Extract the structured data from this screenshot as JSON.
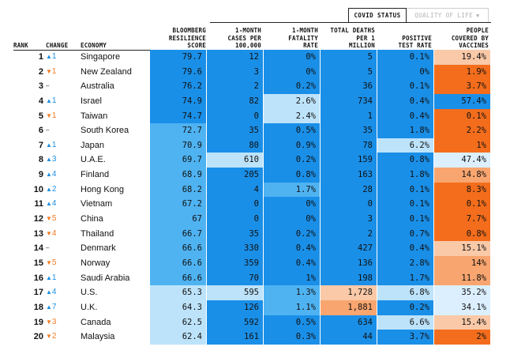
{
  "toggle": {
    "active_label": "COVID STATUS",
    "inactive_label": "QUALITY OF LIFE",
    "caret": "▼"
  },
  "colors": {
    "deep_blue": "#1a8fe8",
    "mid_blue": "#4fb3f2",
    "light_blue": "#bde3fb",
    "pale_blue": "#dcefff",
    "peach": "#f9c9a8",
    "light_orange": "#f8a56f",
    "deep_orange": "#f36d1c",
    "up_arrow": "#1a8fe3",
    "down_arrow": "#f47b20"
  },
  "chart_data": {
    "type": "table",
    "columns": [
      "RANK",
      "CHANGE",
      "ECONOMY",
      "BLOOMBERG RESILIENCE SCORE",
      "1-MONTH CASES PER 100,000",
      "1-MONTH FATALITY RATE",
      "TOTAL DEATHS PER 1 MILLION",
      "POSITIVE TEST RATE",
      "PEOPLE COVERED BY VACCINES"
    ],
    "header_lines": {
      "rank": [
        "RANK"
      ],
      "change": [
        "CHANGE"
      ],
      "economy": [
        "ECONOMY"
      ],
      "score": [
        "BLOOMBERG",
        "RESILIENCE",
        "SCORE"
      ],
      "cases": [
        "1-MONTH",
        "CASES PER",
        "100,000"
      ],
      "fatality": [
        "1-MONTH",
        "FATALITY",
        "RATE"
      ],
      "deaths": [
        "TOTAL DEATHS",
        "PER 1",
        "MILLION"
      ],
      "positive": [
        "POSITIVE",
        "TEST RATE"
      ],
      "vaccines": [
        "PEOPLE",
        "COVERED BY",
        "VACCINES"
      ]
    },
    "rows": [
      {
        "rank": "1",
        "dir": "up",
        "change": "1",
        "economy": "Singapore",
        "score": "79.7",
        "cases": "12",
        "fatality": "0%",
        "deaths": "5",
        "positive": "0.1%",
        "vaccines": "19.4%"
      },
      {
        "rank": "2",
        "dir": "down",
        "change": "1",
        "economy": "New Zealand",
        "score": "79.6",
        "cases": "3",
        "fatality": "0%",
        "deaths": "5",
        "positive": "0%",
        "vaccines": "1.9%"
      },
      {
        "rank": "3",
        "dir": "same",
        "change": "",
        "economy": "Australia",
        "score": "76.2",
        "cases": "2",
        "fatality": "0.2%",
        "deaths": "36",
        "positive": "0.1%",
        "vaccines": "3.7%"
      },
      {
        "rank": "4",
        "dir": "up",
        "change": "1",
        "economy": "Israel",
        "score": "74.9",
        "cases": "82",
        "fatality": "2.6%",
        "deaths": "734",
        "positive": "0.4%",
        "vaccines": "57.4%"
      },
      {
        "rank": "5",
        "dir": "down",
        "change": "1",
        "economy": "Taiwan",
        "score": "74.7",
        "cases": "0",
        "fatality": "2.4%",
        "deaths": "1",
        "positive": "0.4%",
        "vaccines": "0.1%"
      },
      {
        "rank": "6",
        "dir": "same",
        "change": "",
        "economy": "South Korea",
        "score": "72.7",
        "cases": "35",
        "fatality": "0.5%",
        "deaths": "35",
        "positive": "1.8%",
        "vaccines": "2.2%"
      },
      {
        "rank": "7",
        "dir": "up",
        "change": "1",
        "economy": "Japan",
        "score": "70.9",
        "cases": "80",
        "fatality": "0.9%",
        "deaths": "78",
        "positive": "6.2%",
        "vaccines": "1%"
      },
      {
        "rank": "8",
        "dir": "up",
        "change": "3",
        "economy": "U.A.E.",
        "score": "69.7",
        "cases": "610",
        "fatality": "0.2%",
        "deaths": "159",
        "positive": "0.8%",
        "vaccines": "47.4%"
      },
      {
        "rank": "9",
        "dir": "up",
        "change": "4",
        "economy": "Finland",
        "score": "68.9",
        "cases": "205",
        "fatality": "0.8%",
        "deaths": "163",
        "positive": "1.8%",
        "vaccines": "14.8%"
      },
      {
        "rank": "10",
        "dir": "up",
        "change": "2",
        "economy": "Hong Kong",
        "score": "68.2",
        "cases": "4",
        "fatality": "1.7%",
        "deaths": "28",
        "positive": "0.1%",
        "vaccines": "8.3%"
      },
      {
        "rank": "11",
        "dir": "up",
        "change": "4",
        "economy": "Vietnam",
        "score": "67.2",
        "cases": "0",
        "fatality": "0%",
        "deaths": "0",
        "positive": "0.1%",
        "vaccines": "0.1%"
      },
      {
        "rank": "12",
        "dir": "down",
        "change": "5",
        "economy": "China",
        "score": "67",
        "cases": "0",
        "fatality": "0%",
        "deaths": "3",
        "positive": "0.1%",
        "vaccines": "7.7%"
      },
      {
        "rank": "13",
        "dir": "down",
        "change": "4",
        "economy": "Thailand",
        "score": "66.7",
        "cases": "35",
        "fatality": "0.2%",
        "deaths": "2",
        "positive": "0.7%",
        "vaccines": "0.8%"
      },
      {
        "rank": "14",
        "dir": "same",
        "change": "",
        "economy": "Denmark",
        "score": "66.6",
        "cases": "330",
        "fatality": "0.4%",
        "deaths": "427",
        "positive": "0.4%",
        "vaccines": "15.1%"
      },
      {
        "rank": "15",
        "dir": "down",
        "change": "5",
        "economy": "Norway",
        "score": "66.6",
        "cases": "359",
        "fatality": "0.4%",
        "deaths": "136",
        "positive": "2.8%",
        "vaccines": "14%"
      },
      {
        "rank": "16",
        "dir": "up",
        "change": "1",
        "economy": "Saudi Arabia",
        "score": "66.6",
        "cases": "70",
        "fatality": "1%",
        "deaths": "198",
        "positive": "1.7%",
        "vaccines": "11.8%"
      },
      {
        "rank": "17",
        "dir": "up",
        "change": "4",
        "economy": "U.S.",
        "score": "65.3",
        "cases": "595",
        "fatality": "1.3%",
        "deaths": "1,728",
        "positive": "6.8%",
        "vaccines": "35.2%"
      },
      {
        "rank": "18",
        "dir": "up",
        "change": "7",
        "economy": "U.K.",
        "score": "64.3",
        "cases": "126",
        "fatality": "1.1%",
        "deaths": "1,881",
        "positive": "0.2%",
        "vaccines": "34.1%"
      },
      {
        "rank": "19",
        "dir": "down",
        "change": "3",
        "economy": "Canada",
        "score": "62.5",
        "cases": "592",
        "fatality": "0.5%",
        "deaths": "634",
        "positive": "6.6%",
        "vaccines": "15.4%"
      },
      {
        "rank": "20",
        "dir": "down",
        "change": "2",
        "economy": "Malaysia",
        "score": "62.4",
        "cases": "161",
        "fatality": "0.3%",
        "deaths": "44",
        "positive": "3.7%",
        "vaccines": "2%"
      }
    ],
    "cell_colors": {
      "score": [
        "deep_blue",
        "deep_blue",
        "deep_blue",
        "deep_blue",
        "deep_blue",
        "mid_blue",
        "mid_blue",
        "mid_blue",
        "mid_blue",
        "mid_blue",
        "mid_blue",
        "mid_blue",
        "mid_blue",
        "mid_blue",
        "mid_blue",
        "mid_blue",
        "light_blue",
        "light_blue",
        "light_blue",
        "light_blue"
      ],
      "cases": [
        "deep_blue",
        "deep_blue",
        "deep_blue",
        "deep_blue",
        "deep_blue",
        "deep_blue",
        "deep_blue",
        "light_blue",
        "deep_blue",
        "deep_blue",
        "deep_blue",
        "deep_blue",
        "deep_blue",
        "deep_blue",
        "deep_blue",
        "deep_blue",
        "light_blue",
        "deep_blue",
        "deep_blue",
        "deep_blue"
      ],
      "fatality": [
        "deep_blue",
        "deep_blue",
        "deep_blue",
        "light_blue",
        "light_blue",
        "deep_blue",
        "deep_blue",
        "deep_blue",
        "deep_blue",
        "mid_blue",
        "deep_blue",
        "deep_blue",
        "deep_blue",
        "deep_blue",
        "deep_blue",
        "deep_blue",
        "mid_blue",
        "mid_blue",
        "deep_blue",
        "deep_blue"
      ],
      "deaths": [
        "deep_blue",
        "deep_blue",
        "deep_blue",
        "deep_blue",
        "deep_blue",
        "deep_blue",
        "deep_blue",
        "deep_blue",
        "deep_blue",
        "deep_blue",
        "deep_blue",
        "deep_blue",
        "deep_blue",
        "deep_blue",
        "deep_blue",
        "deep_blue",
        "peach",
        "light_orange",
        "deep_blue",
        "deep_blue"
      ],
      "positive": [
        "deep_blue",
        "deep_blue",
        "deep_blue",
        "deep_blue",
        "deep_blue",
        "deep_blue",
        "light_blue",
        "deep_blue",
        "deep_blue",
        "deep_blue",
        "deep_blue",
        "deep_blue",
        "deep_blue",
        "deep_blue",
        "deep_blue",
        "deep_blue",
        "light_blue",
        "deep_blue",
        "light_blue",
        "deep_blue"
      ],
      "vaccines": [
        "peach",
        "deep_orange",
        "deep_orange",
        "deep_blue",
        "deep_orange",
        "deep_orange",
        "deep_orange",
        "pale_blue",
        "light_orange",
        "deep_orange",
        "deep_orange",
        "deep_orange",
        "deep_orange",
        "peach",
        "light_orange",
        "light_orange",
        "pale_blue",
        "pale_blue",
        "peach",
        "deep_orange"
      ]
    }
  }
}
